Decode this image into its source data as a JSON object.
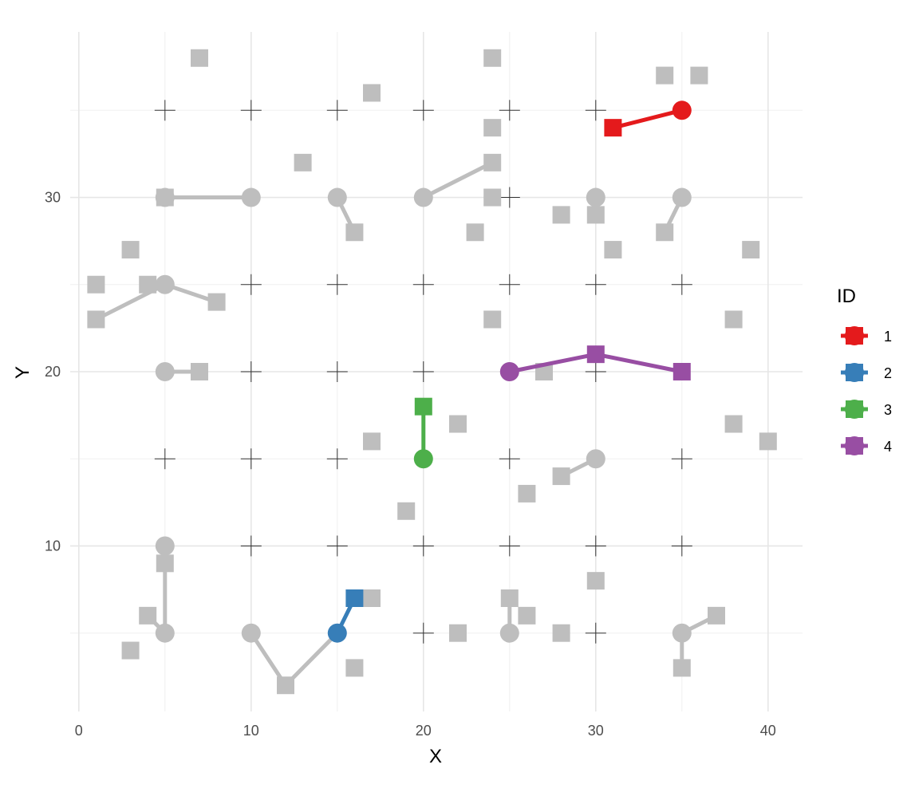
{
  "chart_data": {
    "type": "scatter",
    "xlabel": "X",
    "ylabel": "Y",
    "xlim": [
      -0.5,
      42
    ],
    "ylim": [
      0.5,
      39.5
    ],
    "x_ticks": [
      0,
      10,
      20,
      30,
      40
    ],
    "y_ticks": [
      10,
      20,
      30
    ],
    "grid": true,
    "legend": {
      "title": "ID",
      "position": "right"
    },
    "series": [
      {
        "name": "1",
        "color": "#e41a1c",
        "circle": [
          35,
          35
        ],
        "points": [
          [
            31,
            34
          ]
        ]
      },
      {
        "name": "2",
        "color": "#377eb8",
        "circle": [
          15,
          5
        ],
        "points": [
          [
            16,
            7
          ]
        ]
      },
      {
        "name": "3",
        "color": "#4daf4a",
        "circle": [
          20,
          15
        ],
        "points": [
          [
            20,
            18
          ]
        ]
      },
      {
        "name": "4",
        "color": "#984ea3",
        "circle": [
          25,
          20
        ],
        "points": [
          [
            30,
            21
          ],
          [
            35,
            20
          ]
        ]
      }
    ],
    "background_color": "#bebebe",
    "background_paths": [
      {
        "circle": [
          5,
          30
        ],
        "points": [
          [
            10,
            30
          ]
        ]
      },
      {
        "circle": [
          15,
          30
        ],
        "points": [
          [
            16,
            28
          ]
        ]
      },
      {
        "circle": [
          20,
          30
        ],
        "points": [
          [
            24,
            32
          ]
        ]
      },
      {
        "circle": [
          35,
          30
        ],
        "points": [
          [
            34,
            28
          ]
        ]
      },
      {
        "circle": [
          5,
          25
        ],
        "points": [
          [
            1,
            23
          ]
        ]
      },
      {
        "circle": [
          5,
          25
        ],
        "points": [
          [
            8,
            24
          ]
        ]
      },
      {
        "circle": [
          5,
          20
        ],
        "points": [
          [
            7,
            20
          ]
        ]
      },
      {
        "circle": [
          30,
          15
        ],
        "points": [
          [
            28,
            14
          ]
        ]
      },
      {
        "circle": [
          5,
          10
        ],
        "points": [
          [
            5,
            5
          ]
        ]
      },
      {
        "circle": [
          5,
          5
        ],
        "points": [
          [
            4,
            6
          ]
        ]
      },
      {
        "circle": [
          10,
          5
        ],
        "points": [
          [
            12,
            2
          ],
          [
            15,
            5
          ]
        ]
      },
      {
        "circle": [
          25,
          5
        ],
        "points": [
          [
            25,
            7
          ]
        ]
      },
      {
        "circle": [
          35,
          5
        ],
        "points": [
          [
            37,
            6
          ]
        ]
      },
      {
        "circle": [
          35,
          5
        ],
        "points": [
          [
            35,
            3
          ]
        ]
      }
    ],
    "background_circles": [
      [
        5,
        30
      ],
      [
        10,
        30
      ],
      [
        15,
        30
      ],
      [
        20,
        30
      ],
      [
        30,
        30
      ],
      [
        35,
        30
      ],
      [
        5,
        25
      ],
      [
        5,
        20
      ],
      [
        30,
        15
      ],
      [
        5,
        10
      ],
      [
        5,
        5
      ],
      [
        10,
        5
      ],
      [
        25,
        5
      ],
      [
        35,
        5
      ]
    ],
    "background_squares": [
      [
        7,
        38
      ],
      [
        24,
        38
      ],
      [
        34,
        37
      ],
      [
        36,
        37
      ],
      [
        17,
        36
      ],
      [
        24,
        34
      ],
      [
        13,
        32
      ],
      [
        24,
        32
      ],
      [
        5,
        30
      ],
      [
        24,
        30
      ],
      [
        16,
        28
      ],
      [
        23,
        28
      ],
      [
        28,
        29
      ],
      [
        30,
        29
      ],
      [
        34,
        28
      ],
      [
        3,
        27
      ],
      [
        31,
        27
      ],
      [
        39,
        27
      ],
      [
        1,
        25
      ],
      [
        4,
        25
      ],
      [
        8,
        24
      ],
      [
        1,
        23
      ],
      [
        24,
        23
      ],
      [
        38,
        23
      ],
      [
        7,
        20
      ],
      [
        27,
        20
      ],
      [
        22,
        17
      ],
      [
        38,
        17
      ],
      [
        17,
        16
      ],
      [
        40,
        16
      ],
      [
        28,
        14
      ],
      [
        26,
        13
      ],
      [
        19,
        12
      ],
      [
        5,
        9
      ],
      [
        30,
        8
      ],
      [
        17,
        7
      ],
      [
        25,
        7
      ],
      [
        4,
        6
      ],
      [
        26,
        6
      ],
      [
        37,
        6
      ],
      [
        22,
        5
      ],
      [
        28,
        5
      ],
      [
        3,
        4
      ],
      [
        16,
        3
      ],
      [
        35,
        3
      ],
      [
        12,
        2
      ]
    ],
    "crosses": [
      [
        5,
        35
      ],
      [
        10,
        35
      ],
      [
        15,
        35
      ],
      [
        20,
        35
      ],
      [
        25,
        35
      ],
      [
        30,
        35
      ],
      [
        25,
        30
      ],
      [
        10,
        25
      ],
      [
        15,
        25
      ],
      [
        20,
        25
      ],
      [
        25,
        25
      ],
      [
        30,
        25
      ],
      [
        35,
        25
      ],
      [
        10,
        20
      ],
      [
        15,
        20
      ],
      [
        20,
        20
      ],
      [
        30,
        20
      ],
      [
        5,
        15
      ],
      [
        10,
        15
      ],
      [
        15,
        15
      ],
      [
        25,
        15
      ],
      [
        35,
        15
      ],
      [
        10,
        10
      ],
      [
        15,
        10
      ],
      [
        20,
        10
      ],
      [
        25,
        10
      ],
      [
        30,
        10
      ],
      [
        35,
        10
      ],
      [
        20,
        5
      ],
      [
        30,
        5
      ]
    ]
  }
}
